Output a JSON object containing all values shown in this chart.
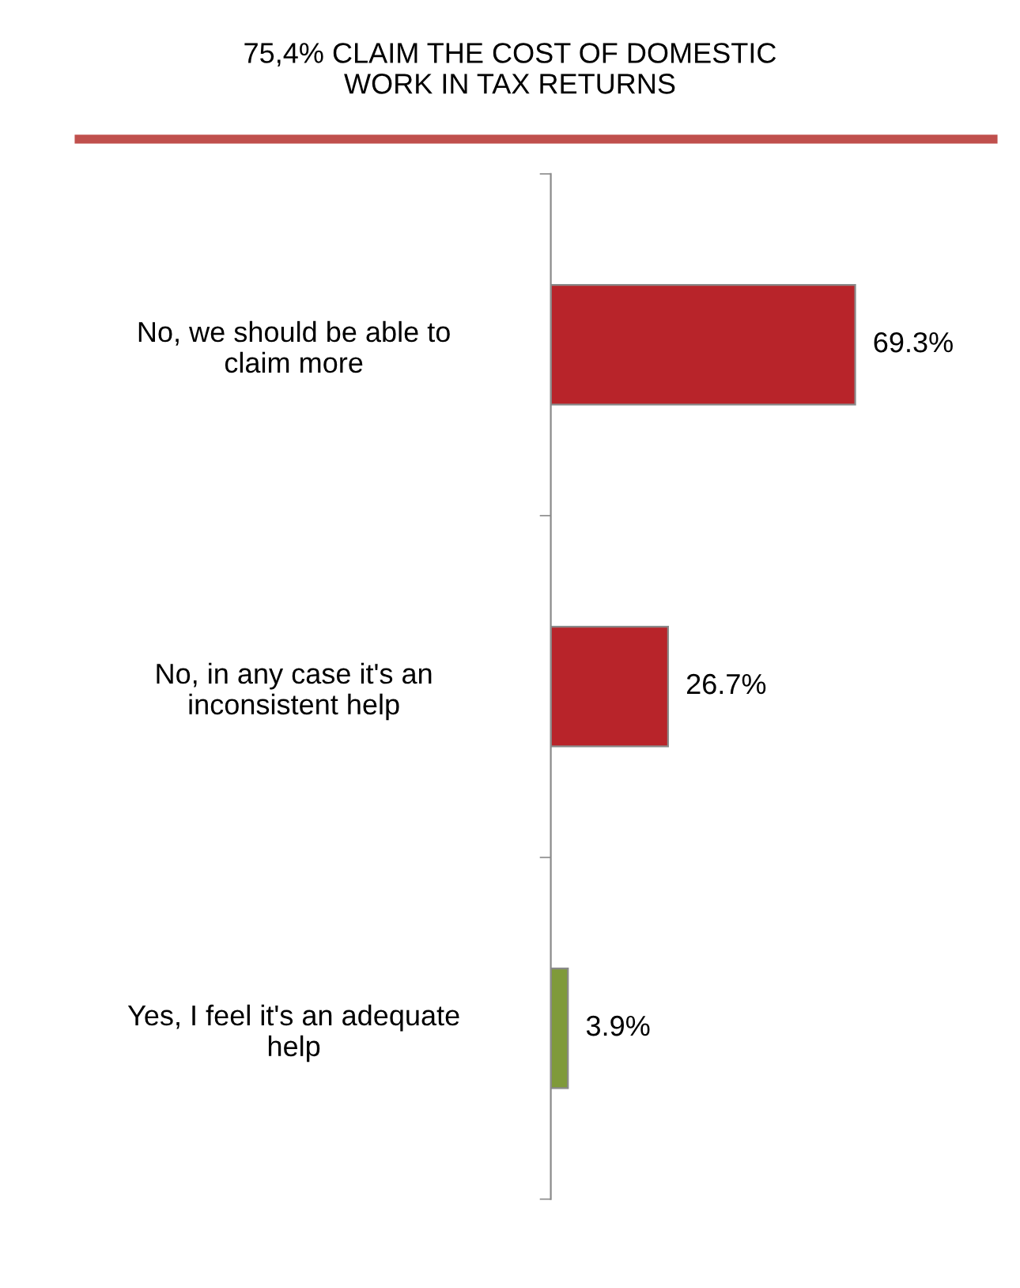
{
  "chart_data": {
    "type": "bar",
    "orientation": "horizontal",
    "title": "75,4% CLAIM THE COST OF DOMESTIC\nWORK IN TAX RETURNS",
    "categories": [
      "No, we should be able to\nclaim more",
      "No, in any case it's an\ninconsistent help",
      "Yes, I feel it's an adequate\nhelp"
    ],
    "values": [
      69.3,
      26.7,
      3.9
    ],
    "colors": [
      "#b8242a",
      "#b8242a",
      "#7f9a3a"
    ],
    "value_labels": [
      "69.3%",
      "26.7%",
      "3.9%"
    ],
    "grid": false,
    "legend": false
  }
}
